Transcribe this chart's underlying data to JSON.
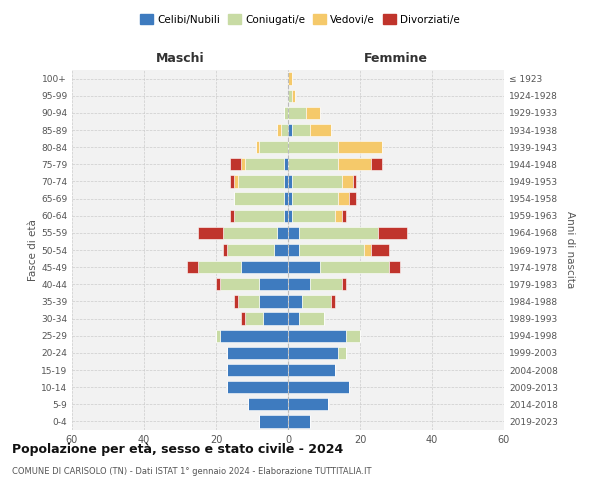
{
  "age_groups": [
    "0-4",
    "5-9",
    "10-14",
    "15-19",
    "20-24",
    "25-29",
    "30-34",
    "35-39",
    "40-44",
    "45-49",
    "50-54",
    "55-59",
    "60-64",
    "65-69",
    "70-74",
    "75-79",
    "80-84",
    "85-89",
    "90-94",
    "95-99",
    "100+"
  ],
  "birth_years": [
    "2019-2023",
    "2014-2018",
    "2009-2013",
    "2004-2008",
    "1999-2003",
    "1994-1998",
    "1989-1993",
    "1984-1988",
    "1979-1983",
    "1974-1978",
    "1969-1973",
    "1964-1968",
    "1959-1963",
    "1954-1958",
    "1949-1953",
    "1944-1948",
    "1939-1943",
    "1934-1938",
    "1929-1933",
    "1924-1928",
    "≤ 1923"
  ],
  "male": {
    "celibe": [
      8,
      11,
      17,
      17,
      17,
      19,
      7,
      8,
      8,
      13,
      4,
      3,
      1,
      1,
      1,
      1,
      0,
      0,
      0,
      0,
      0
    ],
    "coniugato": [
      0,
      0,
      0,
      0,
      0,
      1,
      5,
      6,
      11,
      12,
      13,
      15,
      14,
      14,
      13,
      11,
      8,
      2,
      1,
      0,
      0
    ],
    "vedovo": [
      0,
      0,
      0,
      0,
      0,
      0,
      0,
      0,
      0,
      0,
      0,
      0,
      0,
      0,
      1,
      1,
      1,
      1,
      0,
      0,
      0
    ],
    "divorziato": [
      0,
      0,
      0,
      0,
      0,
      0,
      1,
      1,
      1,
      3,
      1,
      7,
      1,
      0,
      1,
      3,
      0,
      0,
      0,
      0,
      0
    ]
  },
  "female": {
    "nubile": [
      6,
      11,
      17,
      13,
      14,
      16,
      3,
      4,
      6,
      9,
      3,
      3,
      1,
      1,
      1,
      0,
      0,
      1,
      0,
      0,
      0
    ],
    "coniugata": [
      0,
      0,
      0,
      0,
      2,
      4,
      7,
      8,
      9,
      19,
      18,
      22,
      12,
      13,
      14,
      14,
      14,
      5,
      5,
      1,
      0
    ],
    "vedova": [
      0,
      0,
      0,
      0,
      0,
      0,
      0,
      0,
      0,
      0,
      2,
      0,
      2,
      3,
      3,
      9,
      12,
      6,
      4,
      1,
      1
    ],
    "divorziata": [
      0,
      0,
      0,
      0,
      0,
      0,
      0,
      1,
      1,
      3,
      5,
      8,
      1,
      2,
      1,
      3,
      0,
      0,
      0,
      0,
      0
    ]
  },
  "colors": {
    "celibe": "#3e7bbf",
    "coniugato": "#c8dba4",
    "vedovo": "#f5c96a",
    "divorziato": "#c0342c"
  },
  "xlim": 60,
  "title": "Popolazione per età, sesso e stato civile - 2024",
  "subtitle": "COMUNE DI CARISOLO (TN) - Dati ISTAT 1° gennaio 2024 - Elaborazione TUTTITALIA.IT",
  "ylabel_left": "Fasce di età",
  "ylabel_right": "Anni di nascita",
  "xlabel_left": "Maschi",
  "xlabel_right": "Femmine",
  "legend_labels": [
    "Celibi/Nubili",
    "Coniugati/e",
    "Vedovi/e",
    "Divorziati/e"
  ],
  "bg_color": "#f2f2f2",
  "grid_color": "#cccccc"
}
